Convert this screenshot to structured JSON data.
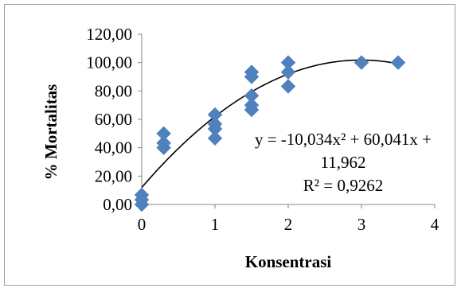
{
  "chart_data": {
    "type": "scatter",
    "title": "",
    "xlabel": "Konsentrasi",
    "ylabel": "% Mortalitas",
    "xlim": [
      0,
      4
    ],
    "ylim": [
      0,
      120
    ],
    "xticks": [
      0,
      1,
      2,
      3,
      4
    ],
    "yticks": [
      0,
      20,
      40,
      60,
      80,
      100,
      120
    ],
    "xtick_labels": [
      "0",
      "1",
      "2",
      "3",
      "4"
    ],
    "ytick_labels": [
      "0,00",
      "20,00",
      "40,00",
      "60,00",
      "80,00",
      "100,00",
      "120,00"
    ],
    "grid": false,
    "legend": false,
    "series": [
      {
        "color": "#4F81BD",
        "marker": "diamond",
        "points": [
          {
            "x": 0,
            "y": 0
          },
          {
            "x": 0,
            "y": 3.3
          },
          {
            "x": 0,
            "y": 6.7
          },
          {
            "x": 0.3,
            "y": 40
          },
          {
            "x": 0.3,
            "y": 43.3
          },
          {
            "x": 0.3,
            "y": 50
          },
          {
            "x": 1,
            "y": 46.7
          },
          {
            "x": 1,
            "y": 53.3
          },
          {
            "x": 1,
            "y": 56.7
          },
          {
            "x": 1,
            "y": 63.3
          },
          {
            "x": 1.5,
            "y": 66.7
          },
          {
            "x": 1.5,
            "y": 70
          },
          {
            "x": 1.5,
            "y": 76.7
          },
          {
            "x": 1.5,
            "y": 90
          },
          {
            "x": 1.5,
            "y": 93.3
          },
          {
            "x": 2,
            "y": 83.3
          },
          {
            "x": 2,
            "y": 93.3
          },
          {
            "x": 2,
            "y": 100
          },
          {
            "x": 3,
            "y": 100
          },
          {
            "x": 3.5,
            "y": 100
          }
        ]
      }
    ],
    "trendline": {
      "type": "polynomial",
      "order": 2,
      "coefficients": {
        "a": -10.034,
        "b": 60.041,
        "c": 11.962
      },
      "x_range": [
        0,
        3.5
      ],
      "color": "#000000"
    },
    "annotation": {
      "equation_line1": "y = -10,034x² + 60,041x +",
      "equation_line2": "11,962",
      "r_squared": "R² = 0,9262"
    }
  }
}
